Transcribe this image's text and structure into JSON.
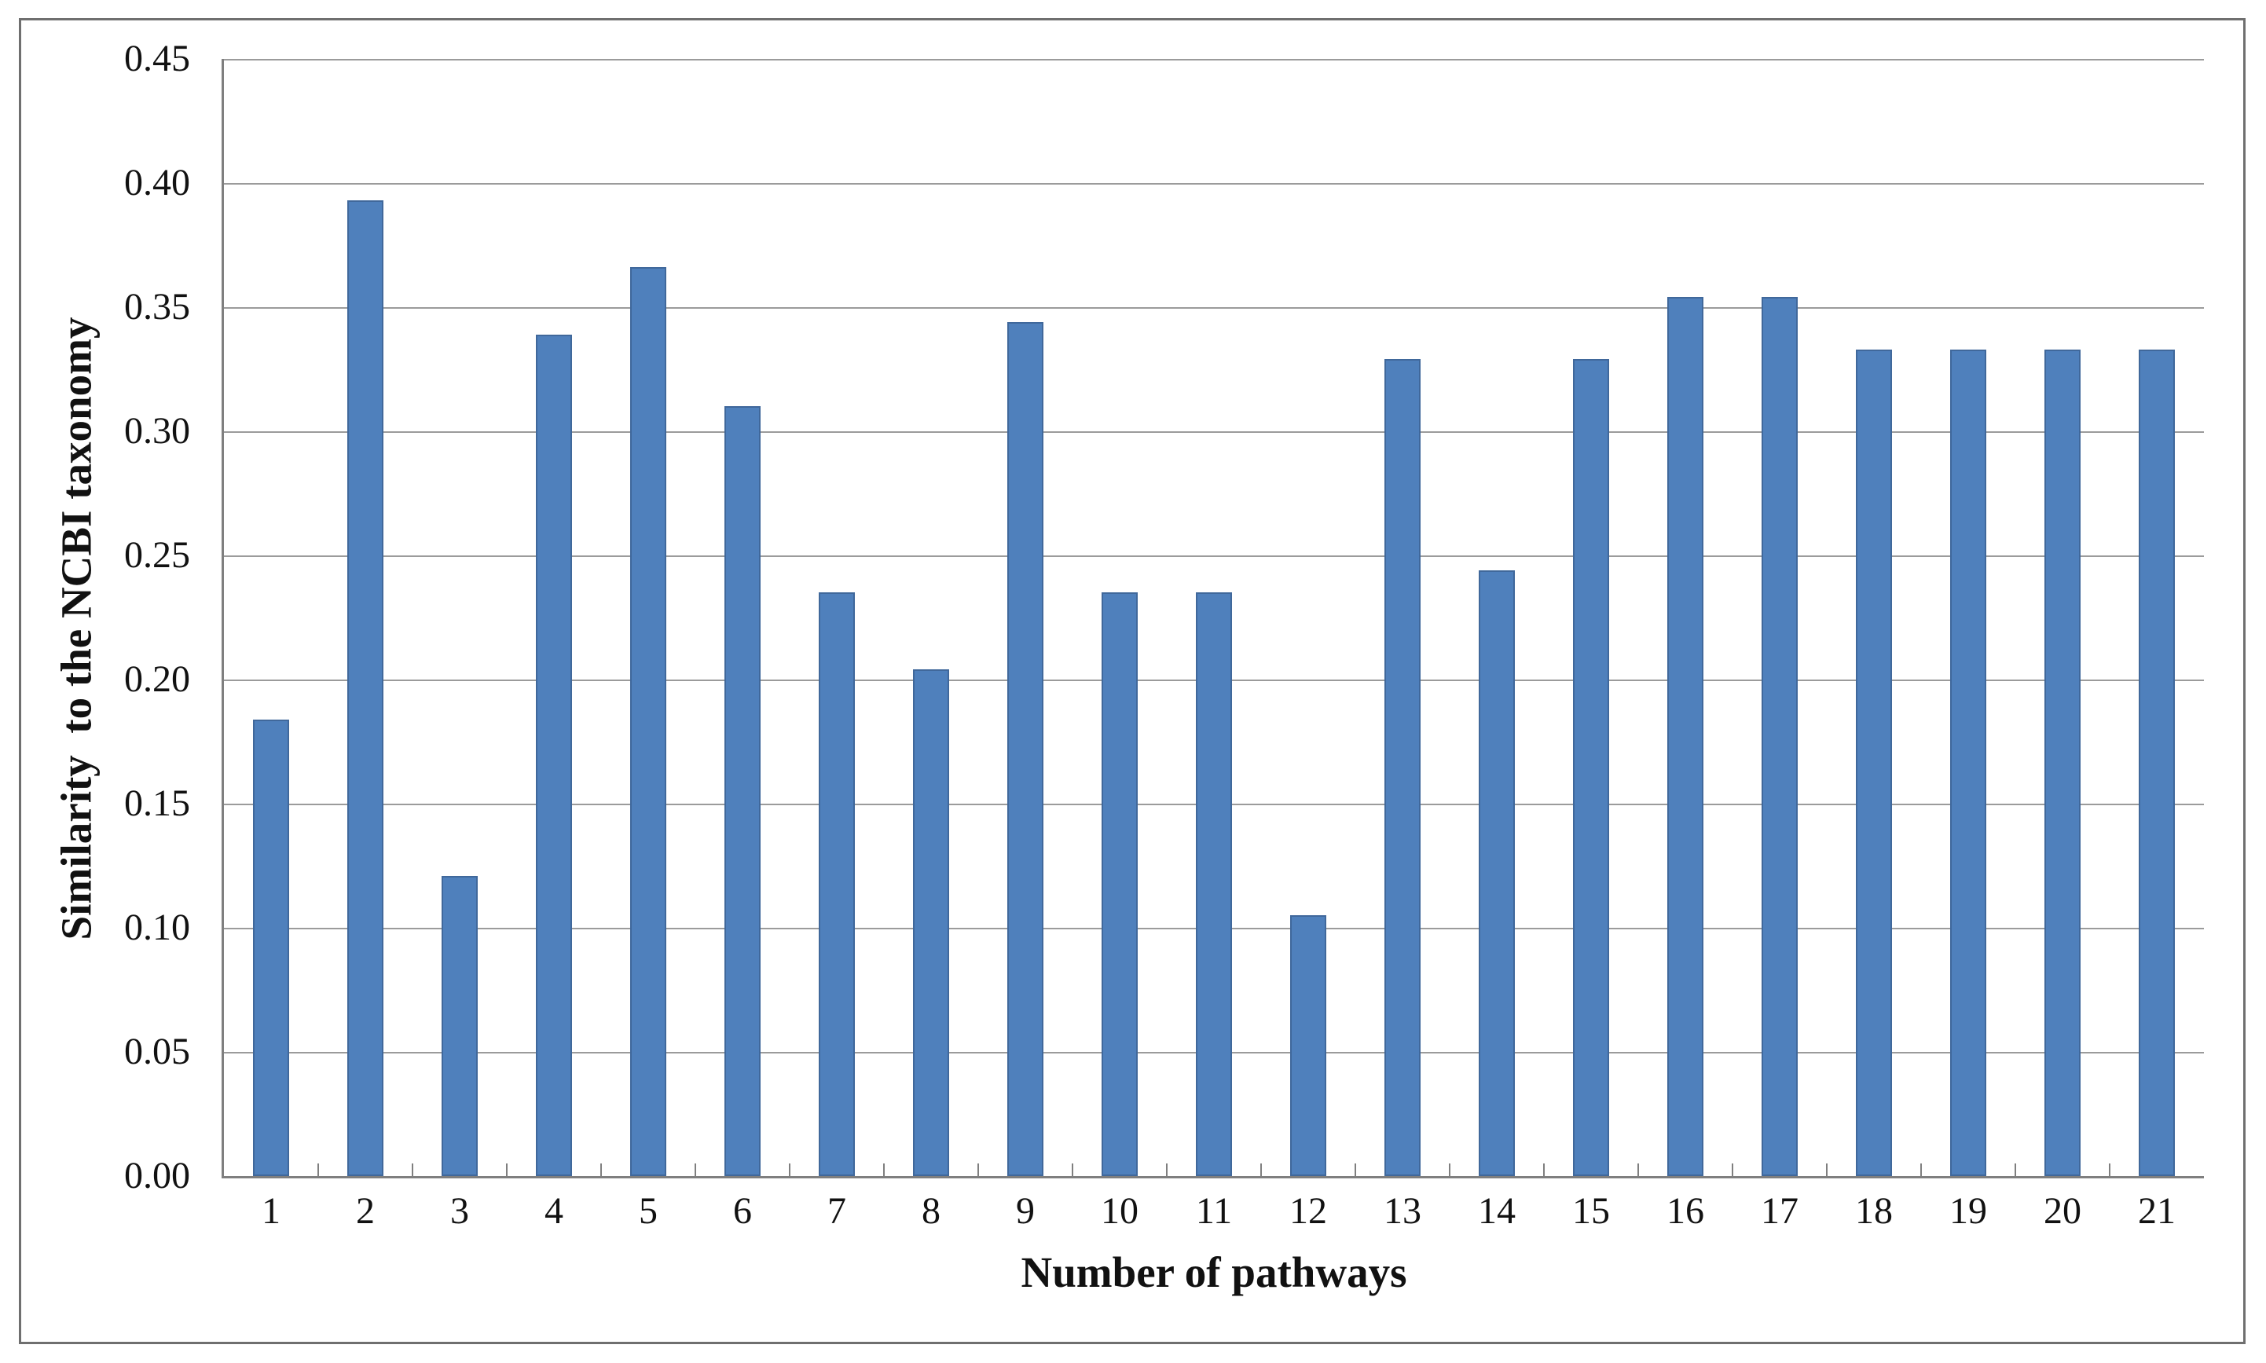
{
  "chart_data": {
    "type": "bar",
    "title": "",
    "xlabel": "Number of pathways",
    "ylabel": "Similarity  to the NCBI taxonomy",
    "categories": [
      "1",
      "2",
      "3",
      "4",
      "5",
      "6",
      "7",
      "8",
      "9",
      "10",
      "11",
      "12",
      "13",
      "14",
      "15",
      "16",
      "17",
      "18",
      "19",
      "20",
      "21"
    ],
    "values": [
      0.184,
      0.393,
      0.121,
      0.339,
      0.366,
      0.31,
      0.235,
      0.204,
      0.344,
      0.235,
      0.235,
      0.105,
      0.329,
      0.244,
      0.329,
      0.354,
      0.354,
      0.333,
      0.333,
      0.333,
      0.333
    ],
    "ylim": [
      0,
      0.45
    ],
    "ytick_step": 0.05,
    "yticks": [
      "0.00",
      "0.05",
      "0.10",
      "0.15",
      "0.20",
      "0.25",
      "0.30",
      "0.35",
      "0.40",
      "0.45"
    ],
    "grid": true,
    "legend": null,
    "colors": {
      "bar_fill": "#4f80bc",
      "bar_border": "#40689b",
      "gridline": "#9b9b9b",
      "axis": "#7f7f7f",
      "frame": "#6f6f6f",
      "text": "#111111"
    }
  }
}
